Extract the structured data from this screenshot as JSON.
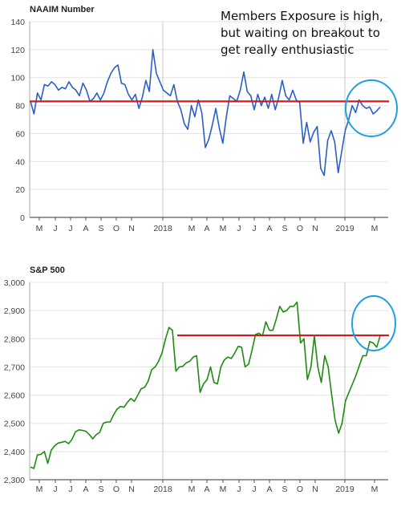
{
  "annotation": "Members Exposure is high,\nbut waiting on breakout to\nget really enthusiastic",
  "colors": {
    "naaim_line": "#2a5ec8",
    "sp500_line": "#1e8a12",
    "reference_line": "#d11a1a",
    "highlight_circle": "#1ba1e2",
    "grid": "#e3e3e3"
  },
  "chart_data": [
    {
      "type": "line",
      "title": "NAAIM Number",
      "xlabel": "",
      "ylabel": "",
      "ylim": [
        0,
        140
      ],
      "yticks": [
        "0",
        "20",
        "40",
        "60",
        "80",
        "100",
        "120",
        "140"
      ],
      "xticks": [
        "M",
        "J",
        "J",
        "A",
        "S",
        "O",
        "N",
        "2018",
        "M",
        "A",
        "M",
        "J",
        "J",
        "A",
        "S",
        "O",
        "N",
        "2019",
        "M"
      ],
      "reference_line": 83,
      "series": [
        {
          "values": [
            83,
            74,
            89,
            84,
            95,
            94,
            97,
            95,
            91,
            93,
            92,
            97,
            93,
            91,
            87,
            96,
            91,
            83,
            85,
            89,
            84,
            89,
            97,
            103,
            107,
            109,
            96,
            95,
            88,
            84,
            88,
            78,
            86,
            98,
            90,
            120,
            103,
            97,
            91,
            89,
            87,
            95,
            83,
            77,
            67,
            63,
            80,
            72,
            84,
            75,
            50,
            56,
            66,
            78,
            64,
            53,
            72,
            87,
            85,
            83,
            91,
            104,
            90,
            87,
            77,
            88,
            80,
            86,
            78,
            88,
            77,
            86,
            98,
            87,
            84,
            91,
            84,
            82,
            53,
            68,
            54,
            61,
            65,
            35,
            30,
            55,
            62,
            54,
            32,
            47,
            62,
            70,
            80,
            75,
            84,
            80,
            78,
            79,
            74,
            76,
            79
          ]
        }
      ]
    },
    {
      "type": "line",
      "title": "S&P 500",
      "xlabel": "",
      "ylabel": "",
      "ylim": [
        2300,
        3000
      ],
      "yticks": [
        "2,300",
        "2,400",
        "2,500",
        "2,600",
        "2,700",
        "2,800",
        "2,900",
        "3,000"
      ],
      "xticks": [
        "M",
        "J",
        "J",
        "A",
        "S",
        "O",
        "N",
        "2018",
        "M",
        "A",
        "M",
        "J",
        "J",
        "A",
        "S",
        "O",
        "N",
        "2019",
        "M"
      ],
      "reference_line": 2812,
      "series": [
        {
          "values": [
            2345,
            2340,
            2388,
            2390,
            2400,
            2358,
            2405,
            2420,
            2430,
            2433,
            2436,
            2428,
            2443,
            2470,
            2477,
            2475,
            2472,
            2460,
            2445,
            2460,
            2468,
            2500,
            2505,
            2505,
            2530,
            2550,
            2560,
            2557,
            2575,
            2588,
            2578,
            2600,
            2623,
            2628,
            2650,
            2690,
            2700,
            2720,
            2750,
            2800,
            2840,
            2830,
            2685,
            2700,
            2702,
            2715,
            2720,
            2735,
            2740,
            2610,
            2640,
            2655,
            2700,
            2645,
            2640,
            2700,
            2725,
            2735,
            2730,
            2750,
            2773,
            2770,
            2700,
            2710,
            2760,
            2815,
            2820,
            2810,
            2860,
            2830,
            2830,
            2870,
            2915,
            2895,
            2900,
            2915,
            2915,
            2930,
            2785,
            2800,
            2655,
            2700,
            2810,
            2700,
            2645,
            2740,
            2700,
            2600,
            2510,
            2465,
            2500,
            2580,
            2610,
            2640,
            2670,
            2705,
            2740,
            2740,
            2790,
            2785,
            2770,
            2810
          ]
        }
      ]
    }
  ]
}
